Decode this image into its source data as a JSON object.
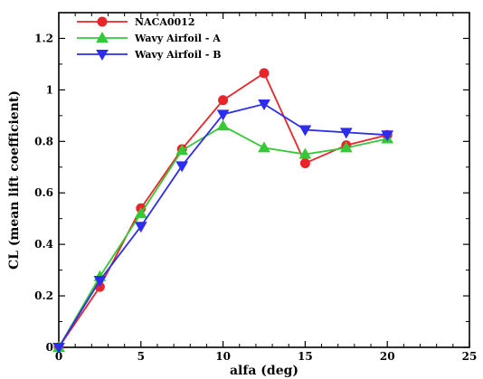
{
  "chart_data": {
    "type": "line",
    "xlabel": "alfa (deg)",
    "ylabel": "CL (mean lift coefficient)",
    "xlim": [
      0,
      25
    ],
    "ylim": [
      0,
      1.3
    ],
    "xticks": [
      "0",
      "5",
      "10",
      "15",
      "20",
      "25"
    ],
    "yticks": [
      "0",
      "0.2",
      "0.4",
      "0.6",
      "0.8",
      "1",
      "1.2"
    ],
    "grid": false,
    "legend_position": "top-left",
    "series": [
      {
        "name": "NACA0012",
        "color": "#e8262a",
        "marker": "circle",
        "x": [
          0,
          2.5,
          5,
          7.5,
          10,
          12.5,
          15,
          17.5,
          20
        ],
        "y": [
          0,
          0.235,
          0.54,
          0.77,
          0.96,
          1.065,
          0.715,
          0.785,
          0.825
        ]
      },
      {
        "name": "Wavy Airfoil - A",
        "color": "#37c837",
        "marker": "triangle-up",
        "x": [
          0,
          2.5,
          5,
          7.5,
          10,
          12.5,
          15,
          17.5,
          20
        ],
        "y": [
          0,
          0.275,
          0.52,
          0.765,
          0.86,
          0.775,
          0.75,
          0.775,
          0.81
        ]
      },
      {
        "name": "Wavy Airfoil - B",
        "color": "#2d2df0",
        "marker": "triangle-down",
        "x": [
          0,
          2.5,
          5,
          7.5,
          10,
          12.5,
          15,
          17.5,
          20
        ],
        "y": [
          0,
          0.26,
          0.47,
          0.705,
          0.905,
          0.945,
          0.845,
          0.835,
          0.825
        ]
      }
    ]
  }
}
